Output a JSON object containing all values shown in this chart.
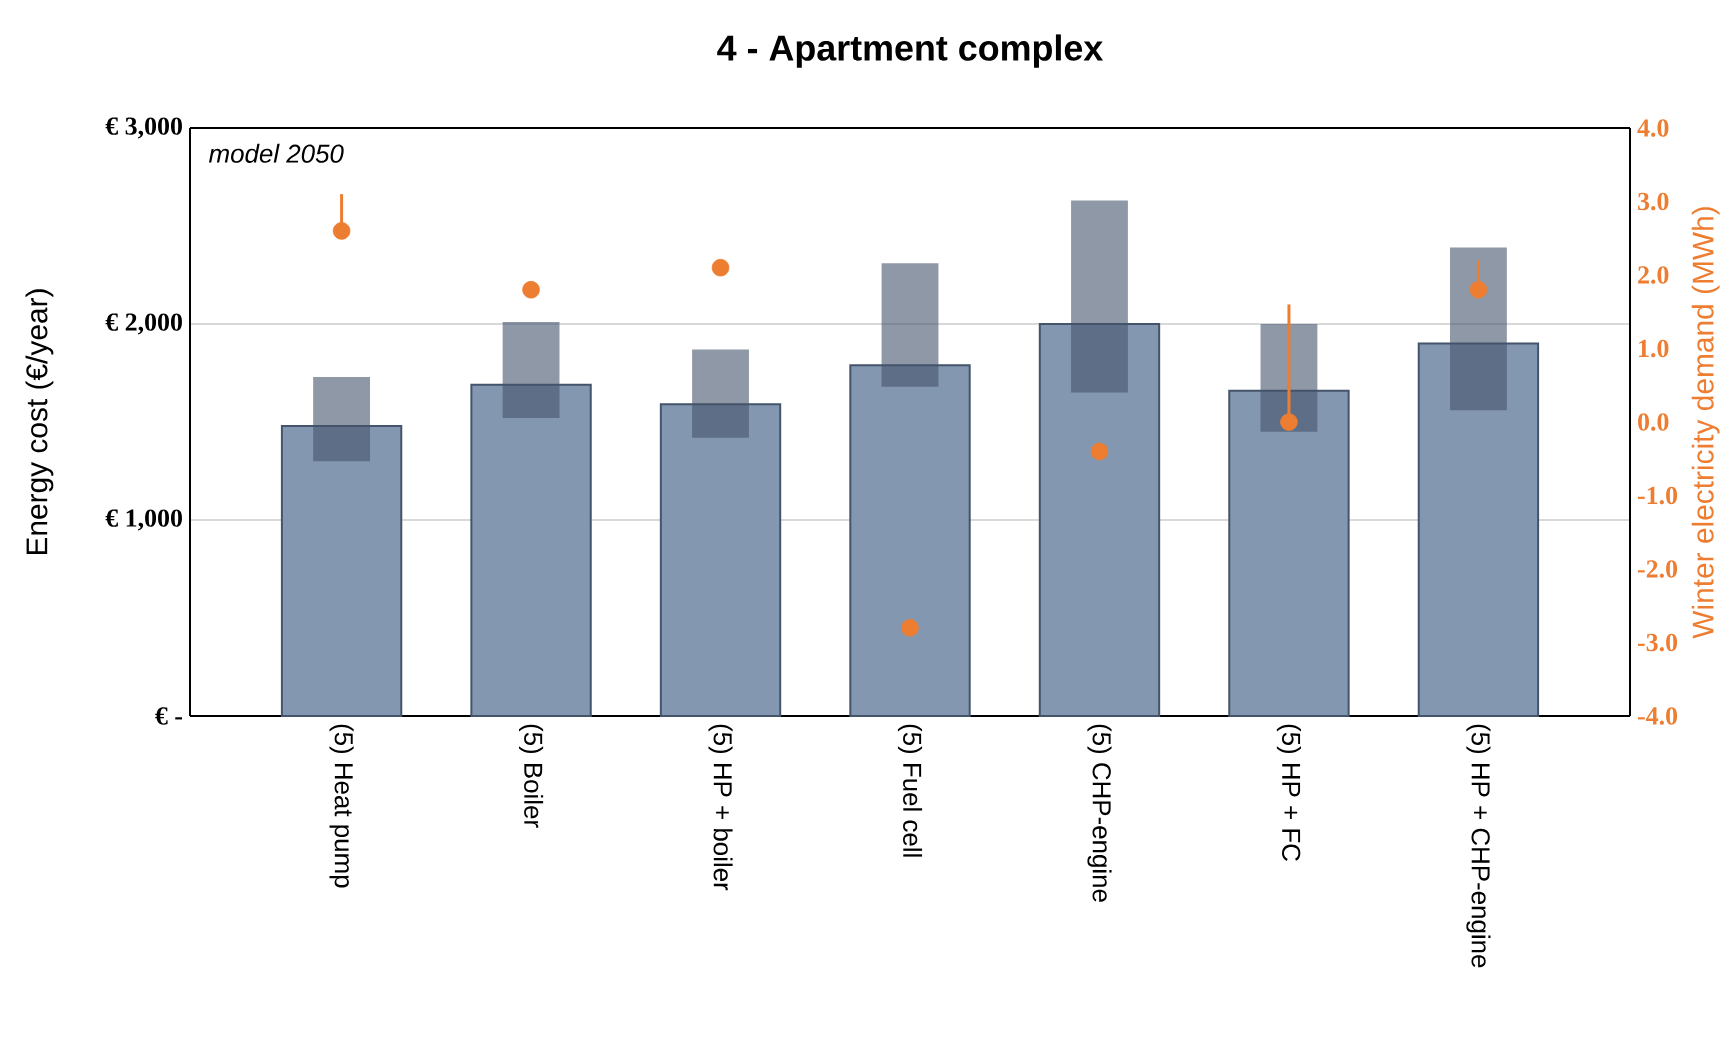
{
  "chart_data": {
    "type": "bar",
    "title": "4 - Apartment complex",
    "ylabel": "Energy cost (€/year)",
    "y2label": "Winter electricity demand (MWh)",
    "categories": [
      "(5) Heat pump",
      "(5) Boiler",
      "(5) HP + boiler",
      "(5) Fuel cell",
      "(5) CHP-engine",
      "(5) HP + FC",
      "(5) HP + CHP-engine"
    ],
    "series": [
      {
        "color": "#8497b0",
        "values": [
          1480,
          1690,
          1590,
          1790,
          2000,
          1660,
          1900
        ]
      },
      {
        "type": "bar",
        "color": "#44546a",
        "base": [
          1300,
          1520,
          1420,
          1680,
          1650,
          1450,
          1560
        ],
        "values": [
          430,
          490,
          450,
          630,
          980,
          550,
          830
        ]
      },
      {
        "type": "scatter",
        "axis": "y2",
        "color": "#ed7d31",
        "values": [
          2.6,
          1.8,
          2.1,
          -2.8,
          -0.4,
          0.0,
          1.8
        ],
        "errors": [
          [
            2.6,
            3.1
          ],
          null,
          null,
          null,
          null,
          [
            0.0,
            1.6
          ],
          [
            1.8,
            2.2
          ]
        ]
      }
    ],
    "ylim": [
      0,
      3000
    ],
    "yticks": [
      {
        "value": 0,
        "label": "€ -"
      },
      {
        "value": 1000,
        "label": "€ 1,000"
      },
      {
        "value": 2000,
        "label": "€ 2,000"
      },
      {
        "value": 3000,
        "label": "€ 3,000"
      }
    ],
    "y2lim": [
      -4,
      4
    ],
    "y2ticks": [
      {
        "value": -4,
        "label": "-4.0"
      },
      {
        "value": -3,
        "label": "-3.0"
      },
      {
        "value": -2,
        "label": "-2.0"
      },
      {
        "value": -1,
        "label": "-1.0"
      },
      {
        "value": 0,
        "label": "0.0"
      },
      {
        "value": 1,
        "label": "1.0"
      },
      {
        "value": 2,
        "label": "2.0"
      },
      {
        "value": 3,
        "label": "3.0"
      },
      {
        "value": 4,
        "label": "4.0"
      }
    ],
    "grid": "y",
    "marker": "circle",
    "annotations": [
      "model 2050"
    ]
  }
}
